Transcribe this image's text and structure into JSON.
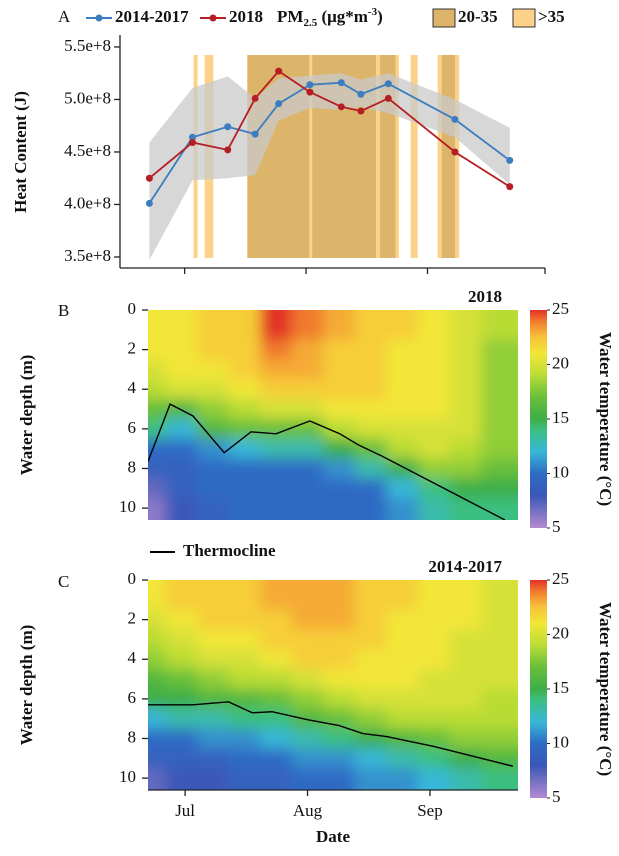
{
  "chart_data": [
    {
      "type": "line",
      "label": "A",
      "ylabel": "Heat Content (J)",
      "x": [
        173,
        184,
        193,
        200,
        206,
        214,
        222,
        227,
        234,
        251,
        265
      ],
      "series": [
        {
          "name": "2014-2017",
          "color": "#3b7dbf",
          "values": [
            401000000,
            464000000,
            474000000,
            467000000,
            496000000,
            514000000,
            516000000,
            505000000,
            515000000,
            481000000,
            442000000
          ]
        },
        {
          "name": "2018",
          "color": "#b51f24",
          "values": [
            425000000,
            459000000,
            452000000,
            501000000,
            527000000,
            507000000,
            493000000,
            489000000,
            501000000,
            450000000,
            417000000
          ]
        }
      ],
      "band": {
        "color": "#c9c9c9",
        "high": [
          459000000,
          511000000,
          522000000,
          501000000,
          520000000,
          523000000,
          525000000,
          519000000,
          525000000,
          500000000,
          473000000
        ],
        "low": [
          347000000,
          423000000,
          425000000,
          428000000,
          480000000,
          492000000,
          490000000,
          493000000,
          487000000,
          464000000,
          419000000
        ]
      },
      "pm_legend": {
        "base": "PM",
        "sub": "2.5",
        "unit": " (μg*m",
        "sup": "-3",
        "close": ")"
      },
      "pm_levels": [
        {
          "name": "20-35",
          "color": "#dcb56a"
        },
        {
          "name": ">35",
          "color": "#fcd28a"
        }
      ],
      "pm_spans": [
        {
          "start": 184.3,
          "end": 185.3,
          "level": 1
        },
        {
          "start": 187.1,
          "end": 189.3,
          "level": 1
        },
        {
          "start": 198.0,
          "end": 230.9,
          "level": 0
        },
        {
          "start": 213.8,
          "end": 214.6,
          "level": 1
        },
        {
          "start": 230.9,
          "end": 231.9,
          "level": 1
        },
        {
          "start": 231.9,
          "end": 235.9,
          "level": 0
        },
        {
          "start": 235.9,
          "end": 236.7,
          "level": 1
        },
        {
          "start": 239.7,
          "end": 241.5,
          "level": 1
        },
        {
          "start": 246.6,
          "end": 247.6,
          "level": 1
        },
        {
          "start": 247.6,
          "end": 251.1,
          "level": 0
        },
        {
          "start": 251.1,
          "end": 252.1,
          "level": 1
        }
      ],
      "xlim": [
        165.5,
        274
      ],
      "xticks": [
        182,
        213,
        244,
        274
      ],
      "show_xtick_labels": false,
      "ylim": [
        339500000,
        561400000
      ],
      "yticks": [
        {
          "value": 350000000,
          "label": "3.5e+8"
        },
        {
          "value": 400000000,
          "label": "4.0e+8"
        },
        {
          "value": 450000000,
          "label": "4.5e+8"
        },
        {
          "value": 500000000,
          "label": "5.0e+8"
        },
        {
          "value": 550000000,
          "label": "5.5e+8"
        }
      ]
    },
    {
      "type": "heatmap",
      "label": "B",
      "title": "2018",
      "ylabel": "Water depth (m)",
      "x": [
        173,
        181,
        189,
        197,
        205,
        213,
        221,
        229,
        237,
        245,
        253,
        261
      ],
      "depths": [
        0,
        1,
        2,
        3,
        4,
        5,
        6,
        7,
        8,
        9,
        10
      ],
      "values": [
        [
          21,
          21,
          21,
          20,
          19,
          17,
          14,
          10,
          9,
          7,
          6
        ],
        [
          21,
          21,
          21,
          21,
          20,
          16,
          12,
          10,
          9,
          9,
          8
        ],
        [
          22,
          22,
          22,
          21,
          20,
          18,
          16,
          11,
          10,
          10,
          9
        ],
        [
          22,
          22,
          22,
          22,
          21,
          19,
          17,
          12,
          10,
          10,
          10
        ],
        [
          25,
          25,
          24,
          23,
          22,
          20,
          17,
          13,
          10,
          10,
          10
        ],
        [
          24,
          24,
          23,
          23,
          22,
          20,
          17,
          13,
          10,
          10,
          10
        ],
        [
          23,
          23,
          22,
          22,
          22,
          21,
          19,
          15,
          11,
          10,
          10
        ],
        [
          22,
          22,
          22,
          22,
          22,
          21,
          20,
          17,
          13,
          10,
          10
        ],
        [
          22,
          22,
          21,
          21,
          21,
          21,
          20,
          19,
          15,
          12,
          11
        ],
        [
          21,
          21,
          21,
          21,
          21,
          21,
          20,
          20,
          18,
          14,
          13
        ],
        [
          20,
          20,
          20,
          20,
          20,
          20,
          20,
          19,
          18,
          15,
          14
        ],
        [
          19,
          19,
          18,
          18,
          18,
          18,
          18,
          18,
          17,
          15,
          14
        ]
      ],
      "xlim": [
        172.6,
        266.3
      ],
      "ylim": [
        0,
        10.6
      ],
      "y_reversed": true,
      "yticks": [
        0,
        2,
        4,
        6,
        8,
        10
      ],
      "thermocline": {
        "name": "Thermocline",
        "color": "#000000",
        "x": [
          172.6,
          178.2,
          184,
          191.9,
          198.7,
          205,
          213.6,
          221.2,
          225.8,
          232.1,
          263
        ],
        "values": [
          7.65,
          4.75,
          5.35,
          7.2,
          6.15,
          6.25,
          5.6,
          6.25,
          6.8,
          7.4,
          10.6
        ]
      },
      "colorbar": {
        "label": "Water temperature (°C)",
        "lim": [
          5,
          25
        ],
        "ticks": [
          5,
          10,
          15,
          20,
          25
        ],
        "colorscale": [
          [
            5,
            "#b58ad0"
          ],
          [
            8,
            "#3a58b8"
          ],
          [
            10,
            "#2f6bc4"
          ],
          [
            12,
            "#38b7d8"
          ],
          [
            14,
            "#3bbf80"
          ],
          [
            15,
            "#3eae48"
          ],
          [
            17,
            "#68bf3a"
          ],
          [
            19,
            "#b9dc36"
          ],
          [
            21,
            "#f2e637"
          ],
          [
            22.5,
            "#f8c23a"
          ],
          [
            24,
            "#f07a2d"
          ],
          [
            25,
            "#e23127"
          ]
        ]
      }
    },
    {
      "type": "heatmap",
      "label": "C",
      "title": "2014-2017",
      "ylabel": "Water depth (m)",
      "xlabel": "Date",
      "x": [
        173,
        181,
        189,
        197,
        205,
        213,
        221,
        229,
        237,
        245,
        253,
        261
      ],
      "depths": [
        0,
        1,
        2,
        3,
        4,
        5,
        6,
        7,
        8,
        9,
        10
      ],
      "values": [
        [
          21,
          21,
          20,
          19,
          18,
          16,
          15,
          12,
          10,
          9,
          7
        ],
        [
          22,
          22,
          21,
          20,
          19,
          17,
          15,
          13,
          10,
          9,
          8
        ],
        [
          22,
          22,
          22,
          21,
          20,
          18,
          16,
          13,
          11,
          9,
          8
        ],
        [
          22,
          22,
          22,
          21,
          20,
          19,
          16,
          14,
          11,
          10,
          9
        ],
        [
          23,
          23,
          22,
          22,
          21,
          19,
          17,
          14,
          12,
          10,
          9
        ],
        [
          23,
          23,
          23,
          22,
          22,
          20,
          18,
          16,
          13,
          11,
          10
        ],
        [
          23,
          23,
          23,
          22,
          22,
          21,
          19,
          17,
          14,
          11,
          10
        ],
        [
          22,
          22,
          22,
          22,
          21,
          21,
          20,
          18,
          15,
          12,
          11
        ],
        [
          22,
          22,
          21,
          21,
          21,
          21,
          20,
          19,
          16,
          13,
          11
        ],
        [
          21,
          21,
          21,
          21,
          21,
          20,
          20,
          19,
          17,
          14,
          12
        ],
        [
          21,
          21,
          21,
          20,
          20,
          20,
          20,
          19,
          18,
          15,
          13
        ],
        [
          20,
          20,
          20,
          20,
          20,
          20,
          19,
          19,
          18,
          16,
          14
        ]
      ],
      "xlim": [
        172.6,
        266.3
      ],
      "ylim": [
        0,
        10.6
      ],
      "y_reversed": true,
      "yticks": [
        0,
        2,
        4,
        6,
        8,
        10
      ],
      "xticks": [
        {
          "value": 182,
          "label": "Jul"
        },
        {
          "value": 213,
          "label": "Aug"
        },
        {
          "value": 244,
          "label": "Sep"
        }
      ],
      "thermocline": {
        "color": "#000000",
        "x": [
          172.6,
          184,
          193,
          199,
          204,
          213,
          221,
          227,
          233,
          245,
          265
        ],
        "values": [
          6.3,
          6.3,
          6.15,
          6.7,
          6.65,
          7.05,
          7.35,
          7.75,
          7.9,
          8.4,
          9.4
        ]
      },
      "colorbar": {
        "label": "Water temperature (°C)",
        "lim": [
          5,
          25
        ],
        "ticks": [
          5,
          10,
          15,
          20,
          25
        ],
        "colorscale": [
          [
            5,
            "#b58ad0"
          ],
          [
            8,
            "#3a58b8"
          ],
          [
            10,
            "#2f6bc4"
          ],
          [
            12,
            "#38b7d8"
          ],
          [
            14,
            "#3bbf80"
          ],
          [
            15,
            "#3eae48"
          ],
          [
            17,
            "#68bf3a"
          ],
          [
            19,
            "#b9dc36"
          ],
          [
            21,
            "#f2e637"
          ],
          [
            22.5,
            "#f8c23a"
          ],
          [
            24,
            "#f07a2d"
          ],
          [
            25,
            "#e23127"
          ]
        ]
      }
    }
  ]
}
